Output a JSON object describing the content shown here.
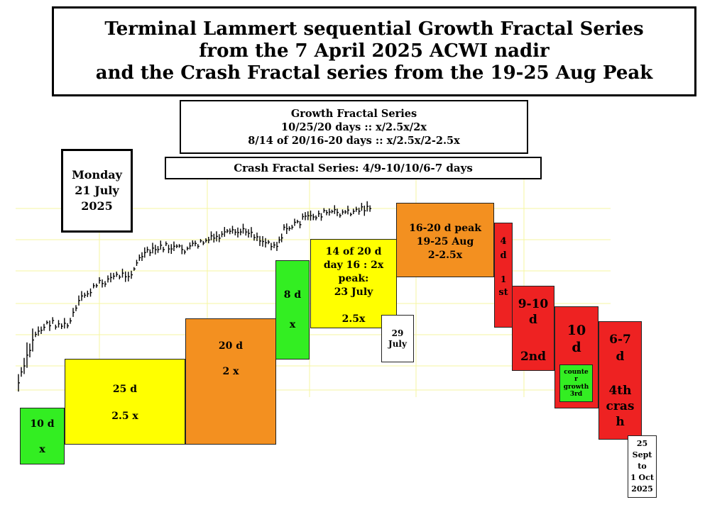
{
  "title": {
    "line1": "Terminal Lammert sequential  Growth Fractal Series",
    "line2": "from the 7 April 2025 ACWI nadir",
    "line3": "and the Crash Fractal series from the 19-25 Aug Peak"
  },
  "growth_series": {
    "heading": "Growth Fractal Series",
    "line1": "10/25/20 days :: x/2.5x/2x",
    "line2": "8/14 of 20/16-20 days :: x/2.5x/2-2.5x"
  },
  "crash_series": {
    "label": "Crash Fractal Series: 4/9-10/10/6-7 days"
  },
  "date_box": {
    "line1": "Monday",
    "line2": "21 July",
    "line3": "2025"
  },
  "blocks": {
    "b1": {
      "a": "10 d",
      "b": "x"
    },
    "b2": {
      "a": "25 d",
      "b": "2.5 x"
    },
    "b3": {
      "a": "20 d",
      "b": "2 x"
    },
    "b4": {
      "a": "8 d",
      "b": "x"
    },
    "b5": {
      "a": "14 of 20 d",
      "b": "day 16 : 2x",
      "c": "peak:",
      "d": "23 July",
      "e": "2.5x"
    },
    "b6": {
      "a": "16-20 d peak",
      "b": "19-25 Aug",
      "c": "2-2.5x"
    },
    "c1": {
      "a": "4",
      "b": "d",
      "c": "1",
      "d": "st"
    },
    "c2": {
      "a": "9-10",
      "b": "d",
      "c": "2nd"
    },
    "c3": {
      "a": "10",
      "b": "d"
    },
    "c3_inner": {
      "a": "counte",
      "b": "r",
      "c": "growth",
      "d": "3rd"
    },
    "c4": {
      "a": "6-7",
      "b": "d",
      "c": "4th",
      "d": "cras",
      "e": "h"
    }
  },
  "label_29_july": {
    "a": "29",
    "b": "July"
  },
  "label_end": {
    "a": "25",
    "b": "Sept",
    "c": "to",
    "d": "1 Oct",
    "e": "2025"
  },
  "colors": {
    "green": "#33ee22",
    "yellow": "#ffff00",
    "orange": "#f39020",
    "red": "#ee2222",
    "grid": "#f5f5a0"
  }
}
